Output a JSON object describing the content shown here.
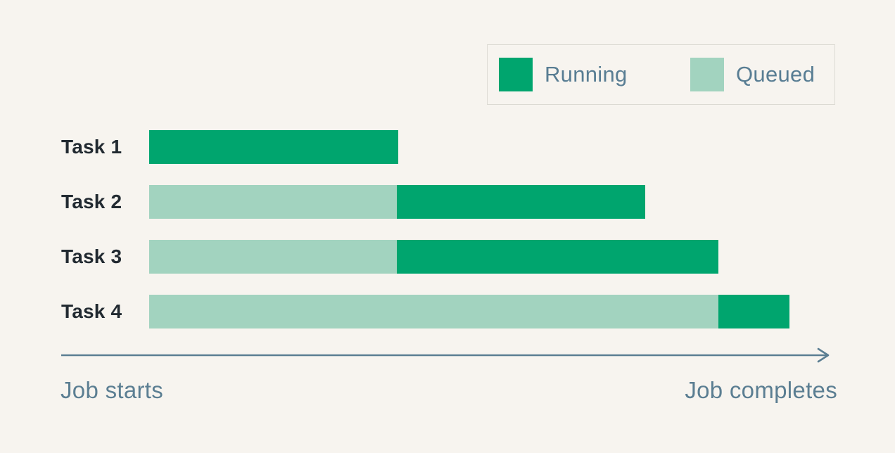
{
  "colors": {
    "running": "#00a56e",
    "queued": "#a2d3bf",
    "background": "#f7f4ef",
    "axis": "#5b7e92",
    "task_label": "#222a31",
    "legend_text": "#587d93",
    "legend_border": "#dcdad3"
  },
  "legend": {
    "items": [
      {
        "label": "Running",
        "status": "running"
      },
      {
        "label": "Queued",
        "status": "queued"
      }
    ]
  },
  "axis": {
    "start_label": "Job starts",
    "end_label": "Job completes"
  },
  "chart_data": {
    "type": "bar",
    "variant": "gantt",
    "orientation": "horizontal",
    "grid": false,
    "legend_position": "top-right",
    "legend": [
      "Running",
      "Queued"
    ],
    "categories": [
      "Task 1",
      "Task 2",
      "Task 3",
      "Task 4"
    ],
    "x_axis": {
      "start_label": "Job starts",
      "end_label": "Job completes",
      "range_pct": [
        0,
        100
      ]
    },
    "tasks": [
      {
        "label": "Task 1",
        "segments": [
          {
            "status": "running",
            "start_pct": 0,
            "end_pct": 38.9
          }
        ]
      },
      {
        "label": "Task 2",
        "segments": [
          {
            "status": "queued",
            "start_pct": 0,
            "end_pct": 38.7
          },
          {
            "status": "running",
            "start_pct": 38.7,
            "end_pct": 77.5
          }
        ]
      },
      {
        "label": "Task 3",
        "segments": [
          {
            "status": "queued",
            "start_pct": 0,
            "end_pct": 38.7
          },
          {
            "status": "running",
            "start_pct": 38.7,
            "end_pct": 88.9
          }
        ]
      },
      {
        "label": "Task 4",
        "segments": [
          {
            "status": "queued",
            "start_pct": 0,
            "end_pct": 88.9
          },
          {
            "status": "running",
            "start_pct": 88.9,
            "end_pct": 100
          }
        ]
      }
    ]
  }
}
